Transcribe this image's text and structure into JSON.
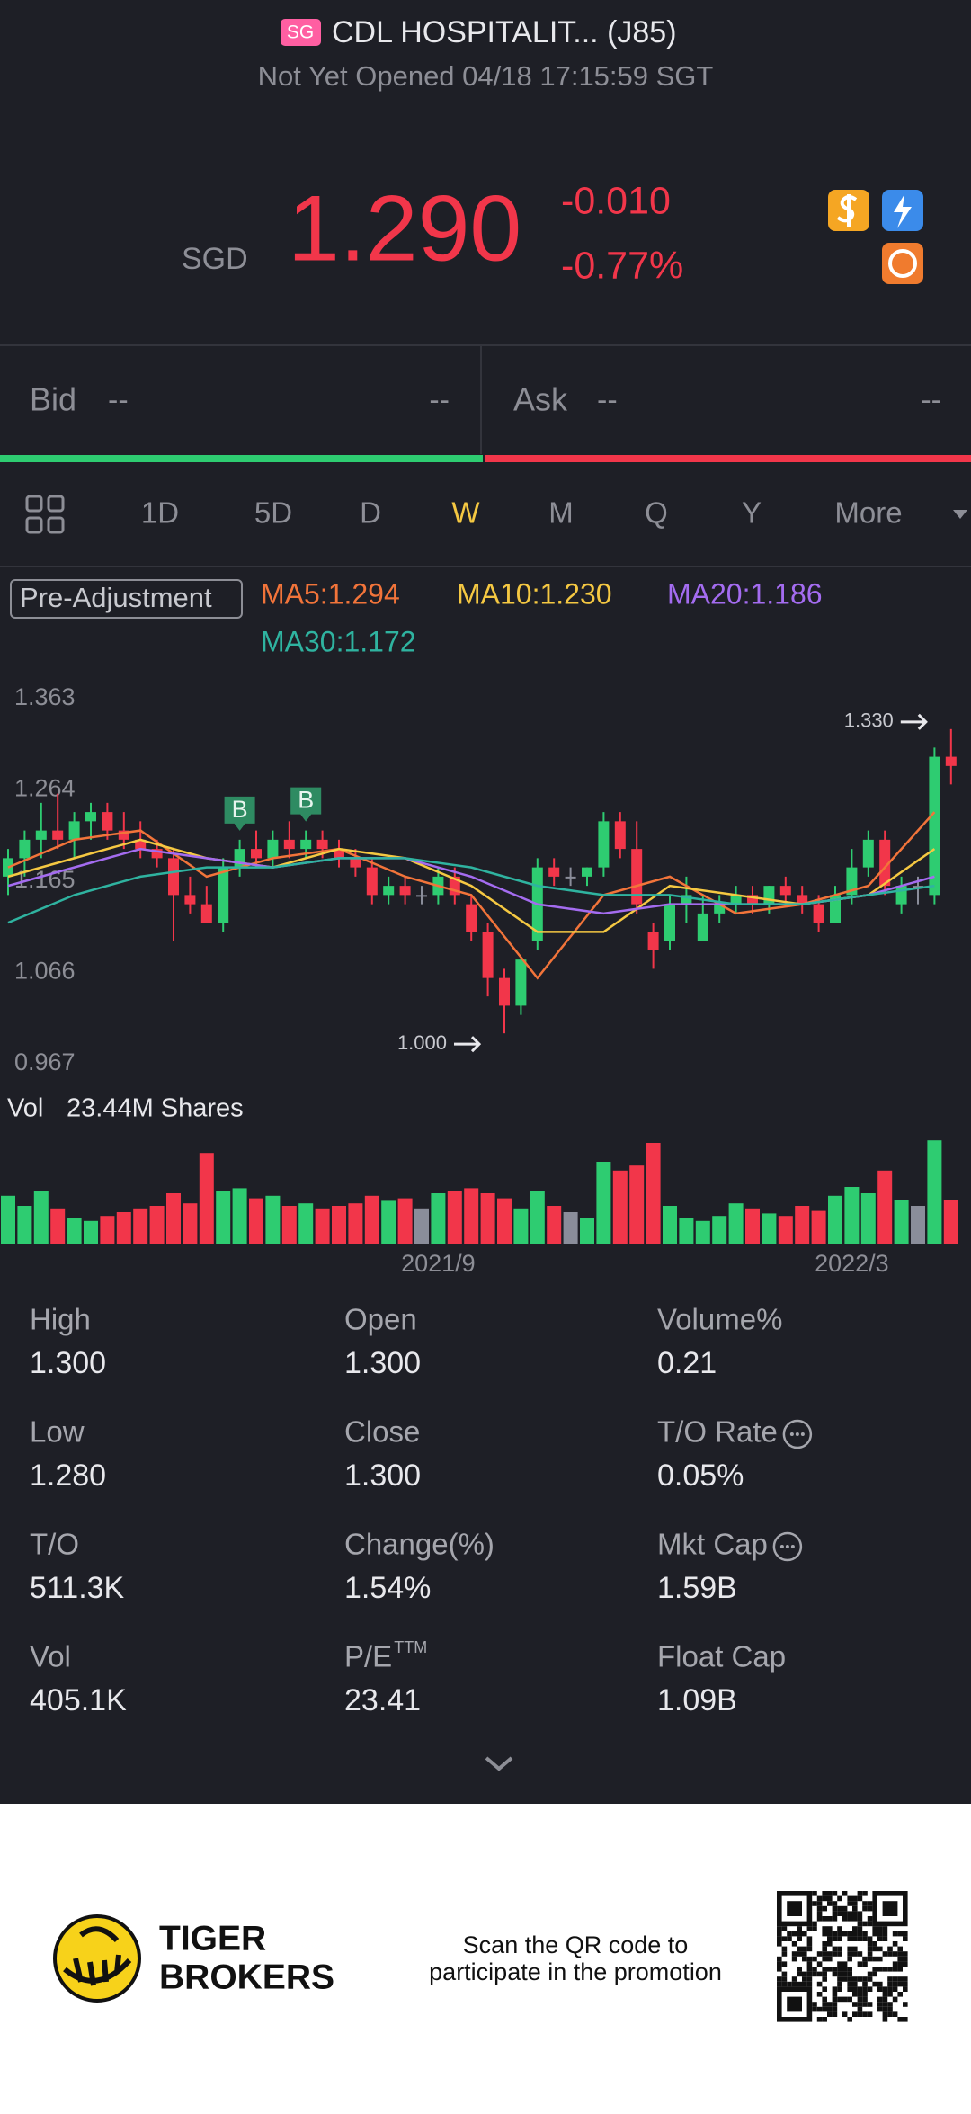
{
  "header": {
    "badge": "SG",
    "title": "CDL HOSPITALIT... (J85)",
    "status": "Not Yet Opened 04/18 17:15:59 SGT"
  },
  "quote": {
    "currency": "SGD",
    "price": "1.290",
    "change": "-0.010",
    "change_pct": "-0.77%"
  },
  "order_book": {
    "bid_label": "Bid",
    "bid_price": "--",
    "bid_size": "--",
    "ask_label": "Ask",
    "ask_price": "--",
    "ask_size": "--"
  },
  "tabs": [
    "1D",
    "5D",
    "D",
    "W",
    "M",
    "Q",
    "Y",
    "More"
  ],
  "adjust_label": "Pre-Adjustment",
  "chart_data": {
    "type": "candlestick",
    "ylim": [
      0.967,
      1.363
    ],
    "yticks": [
      1.363,
      1.264,
      1.165,
      1.066,
      0.967
    ],
    "up_color": "#2ecc71",
    "down_color": "#f2364a",
    "flat_color": "#8a8d9a",
    "categories": [
      null,
      null,
      null,
      null,
      null,
      null,
      null,
      null,
      null,
      null,
      null,
      null,
      null,
      null,
      null,
      null,
      null,
      null,
      null,
      null,
      null,
      null,
      null,
      null,
      null,
      null,
      "2021/9",
      null,
      null,
      null,
      null,
      null,
      null,
      null,
      null,
      null,
      null,
      null,
      null,
      null,
      null,
      null,
      null,
      null,
      null,
      null,
      null,
      null,
      null,
      null,
      null,
      "2022/3",
      null,
      null,
      null,
      null,
      null,
      null
    ],
    "open": [
      1.17,
      1.19,
      1.21,
      1.22,
      1.21,
      1.23,
      1.24,
      1.22,
      1.21,
      1.2,
      1.19,
      1.15,
      1.14,
      1.12,
      1.18,
      1.2,
      1.19,
      1.21,
      1.2,
      1.21,
      1.2,
      1.19,
      1.18,
      1.15,
      1.16,
      1.15,
      1.15,
      1.17,
      1.14,
      1.11,
      1.06,
      1.03,
      1.1,
      1.18,
      1.17,
      1.17,
      1.18,
      1.23,
      1.2,
      1.11,
      1.1,
      1.14,
      1.1,
      1.13,
      1.14,
      1.15,
      1.14,
      1.16,
      1.15,
      1.14,
      1.12,
      1.15,
      1.18,
      1.21,
      1.14,
      1.16,
      1.15,
      1.3
    ],
    "high": [
      1.2,
      1.22,
      1.25,
      1.26,
      1.24,
      1.25,
      1.25,
      1.24,
      1.23,
      1.21,
      1.2,
      1.17,
      1.16,
      1.19,
      1.21,
      1.22,
      1.22,
      1.23,
      1.22,
      1.22,
      1.21,
      1.2,
      1.19,
      1.17,
      1.17,
      1.16,
      1.18,
      1.18,
      1.15,
      1.12,
      1.07,
      1.08,
      1.19,
      1.19,
      1.18,
      1.18,
      1.24,
      1.24,
      1.23,
      1.12,
      1.15,
      1.17,
      1.15,
      1.15,
      1.16,
      1.16,
      1.16,
      1.17,
      1.16,
      1.15,
      1.16,
      1.2,
      1.22,
      1.22,
      1.17,
      1.17,
      1.31,
      1.33
    ],
    "low": [
      1.15,
      1.17,
      1.19,
      1.2,
      1.19,
      1.21,
      1.21,
      1.2,
      1.19,
      1.18,
      1.1,
      1.13,
      1.12,
      1.11,
      1.17,
      1.18,
      1.18,
      1.19,
      1.19,
      1.19,
      1.18,
      1.17,
      1.14,
      1.14,
      1.14,
      1.14,
      1.14,
      1.14,
      1.1,
      1.04,
      1.0,
      1.02,
      1.09,
      1.16,
      1.16,
      1.16,
      1.17,
      1.19,
      1.13,
      1.07,
      1.09,
      1.12,
      1.1,
      1.12,
      1.13,
      1.13,
      1.13,
      1.14,
      1.13,
      1.11,
      1.12,
      1.14,
      1.17,
      1.15,
      1.13,
      1.14,
      1.14,
      1.27
    ],
    "close": [
      1.19,
      1.21,
      1.22,
      1.21,
      1.23,
      1.24,
      1.22,
      1.21,
      1.2,
      1.19,
      1.15,
      1.14,
      1.12,
      1.18,
      1.2,
      1.19,
      1.21,
      1.2,
      1.21,
      1.2,
      1.19,
      1.18,
      1.15,
      1.16,
      1.15,
      1.15,
      1.17,
      1.15,
      1.11,
      1.06,
      1.03,
      1.08,
      1.18,
      1.17,
      1.17,
      1.18,
      1.23,
      1.2,
      1.14,
      1.09,
      1.14,
      1.15,
      1.13,
      1.14,
      1.15,
      1.14,
      1.16,
      1.15,
      1.14,
      1.12,
      1.15,
      1.18,
      1.21,
      1.16,
      1.16,
      1.16,
      1.3,
      1.29
    ],
    "series": [
      {
        "name": "MA5:1.294",
        "color": "#f2743a",
        "x": [
          0,
          4,
          8,
          12,
          16,
          20,
          24,
          28,
          32,
          36,
          40,
          44,
          48,
          52,
          56
        ],
        "values": [
          1.18,
          1.21,
          1.22,
          1.17,
          1.19,
          1.2,
          1.17,
          1.15,
          1.06,
          1.15,
          1.17,
          1.13,
          1.14,
          1.16,
          1.24
        ]
      },
      {
        "name": "MA10:1.230",
        "color": "#f5c842",
        "x": [
          0,
          4,
          8,
          12,
          16,
          20,
          24,
          28,
          32,
          36,
          40,
          44,
          48,
          52,
          56
        ],
        "values": [
          1.17,
          1.19,
          1.21,
          1.19,
          1.18,
          1.2,
          1.19,
          1.16,
          1.11,
          1.11,
          1.16,
          1.15,
          1.14,
          1.15,
          1.2
        ]
      },
      {
        "name": "MA20:1.186",
        "color": "#a46cf0",
        "x": [
          0,
          4,
          8,
          12,
          16,
          20,
          24,
          28,
          32,
          36,
          40,
          44,
          48,
          52,
          56
        ],
        "values": [
          1.16,
          1.18,
          1.2,
          1.19,
          1.18,
          1.19,
          1.19,
          1.17,
          1.14,
          1.13,
          1.14,
          1.14,
          1.14,
          1.15,
          1.17
        ]
      },
      {
        "name": "MA30:1.172",
        "color": "#2fb3a0",
        "x": [
          0,
          4,
          8,
          12,
          16,
          20,
          24,
          28,
          32,
          36,
          40,
          44,
          48,
          52,
          56
        ],
        "values": [
          1.12,
          1.15,
          1.17,
          1.18,
          1.18,
          1.19,
          1.19,
          1.18,
          1.16,
          1.15,
          1.15,
          1.14,
          1.14,
          1.15,
          1.16
        ]
      }
    ],
    "trades": [
      {
        "x": 14,
        "label": "B"
      },
      {
        "x": 18,
        "label": "B"
      }
    ],
    "annotations": [
      {
        "x": 57,
        "value": 1.33,
        "label": "1.330"
      },
      {
        "x": 30,
        "value": 1.0,
        "label": "1.000"
      }
    ],
    "volume": {
      "label": "Vol",
      "value_text": "23.44M Shares",
      "ylim": [
        0,
        90
      ],
      "values": [
        38,
        30,
        42,
        28,
        20,
        18,
        22,
        25,
        28,
        30,
        40,
        32,
        72,
        42,
        44,
        36,
        38,
        30,
        32,
        28,
        30,
        32,
        38,
        34,
        36,
        28,
        40,
        42,
        44,
        40,
        36,
        28,
        42,
        30,
        25,
        20,
        65,
        58,
        62,
        80,
        30,
        20,
        18,
        22,
        32,
        28,
        24,
        22,
        30,
        26,
        38,
        45,
        40,
        58,
        35,
        30,
        82,
        35
      ]
    }
  },
  "stats": [
    {
      "label": "High",
      "value": "1.300"
    },
    {
      "label": "Open",
      "value": "1.300"
    },
    {
      "label": "Volume%",
      "value": "0.21"
    },
    {
      "label": "Low",
      "value": "1.280"
    },
    {
      "label": "Close",
      "value": "1.300"
    },
    {
      "label": "T/O Rate",
      "value": "0.05%",
      "info": true
    },
    {
      "label": "T/O",
      "value": "511.3K"
    },
    {
      "label": "Change(%)",
      "value": "1.54%"
    },
    {
      "label": "Mkt Cap",
      "value": "1.59B",
      "info": true
    },
    {
      "label": "Vol",
      "value": "405.1K"
    },
    {
      "label": "P/E",
      "sup": "TTM",
      "value": "23.41"
    },
    {
      "label": "Float Cap",
      "value": "1.09B"
    }
  ],
  "footer": {
    "brand": [
      "TIGER",
      "BROKERS"
    ],
    "promo": [
      "Scan the QR code to",
      "participate in the promotion"
    ]
  }
}
